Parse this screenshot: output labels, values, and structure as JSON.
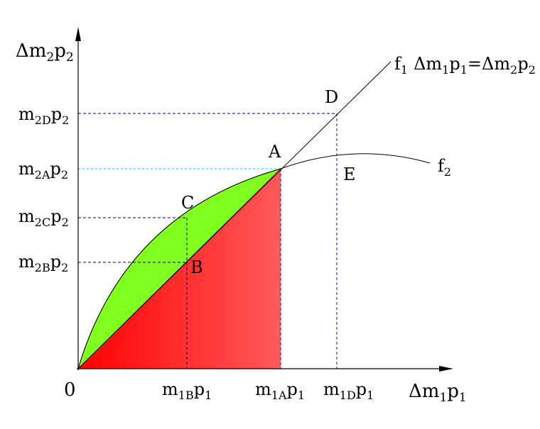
{
  "axes": {
    "origin": "0",
    "y_axis_label": {
      "main": "Δm",
      "sub1": "2",
      "mid": "p",
      "sub2": "2"
    },
    "x_axis_label": {
      "main": "Δm",
      "sub1": "1",
      "mid": "p",
      "sub2": "1"
    }
  },
  "y_ticks": [
    {
      "main": "m",
      "sub1": "2D",
      "mid": "p",
      "sub2": "2"
    },
    {
      "main": "m",
      "sub1": "2A",
      "mid": "p",
      "sub2": "2"
    },
    {
      "main": "m",
      "sub1": "2C",
      "mid": "p",
      "sub2": "2"
    },
    {
      "main": "m",
      "sub1": "2B",
      "mid": "p",
      "sub2": "2"
    }
  ],
  "x_ticks": [
    {
      "main": "m",
      "sub1": "1B",
      "mid": "p",
      "sub2": "1"
    },
    {
      "main": "m",
      "sub1": "1A",
      "mid": "p",
      "sub2": "1"
    },
    {
      "main": "m",
      "sub1": "1D",
      "mid": "p",
      "sub2": "1"
    }
  ],
  "points": {
    "A": "A",
    "B": "B",
    "C": "C",
    "D": "D",
    "E": "E"
  },
  "curves": {
    "f1": {
      "name": "f",
      "sub": "1",
      "eq_lhs_main": "Δm",
      "eq_lhs_sub1": "1",
      "eq_lhs_mid": "p",
      "eq_lhs_sub2": "1",
      "eq_sign": "=",
      "eq_rhs_main": "Δm",
      "eq_rhs_sub1": "2",
      "eq_rhs_mid": "p",
      "eq_rhs_sub2": "2"
    },
    "f2": {
      "name": "f",
      "sub": "2"
    }
  },
  "colors": {
    "green_region": "#80ff20",
    "red_region_start": "#ff0000",
    "red_region_end": "#ff5a5a",
    "dashed_guides": "#000080",
    "cyan_guide": "#00c8e8",
    "axes": "#000000"
  }
}
